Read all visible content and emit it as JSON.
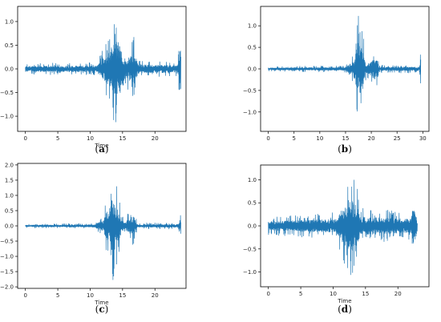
{
  "chart_data": [
    {
      "type": "line",
      "caption_letter": "a",
      "xlabel": "Time",
      "ylabel": "",
      "xlim": [
        -1.2,
        24.8
      ],
      "ylim": [
        -1.32,
        1.32
      ],
      "xticks": [
        0,
        5,
        10,
        15,
        20
      ],
      "yticks": [
        -1.0,
        -0.5,
        0.0,
        0.5,
        1.0
      ],
      "ytick_labels": [
        "−1.0",
        "−0.5",
        "0.0",
        "0.5",
        "1.0"
      ],
      "color": "#1f77b4",
      "duration": 24,
      "envelope": [
        {
          "x": 0,
          "a": 0.12
        },
        {
          "x": 11,
          "a": 0.14
        },
        {
          "x": 12,
          "a": 0.45
        },
        {
          "x": 13,
          "a": 0.75
        },
        {
          "x": 13.6,
          "a": 1.15
        },
        {
          "x": 14.6,
          "a": 1.18
        },
        {
          "x": 15.2,
          "a": 0.3
        },
        {
          "x": 16.8,
          "a": 0.7
        },
        {
          "x": 17.4,
          "a": 0.2
        },
        {
          "x": 23.5,
          "a": 0.15
        },
        {
          "x": 24,
          "a": 1.05
        }
      ]
    },
    {
      "type": "line",
      "caption_letter": "b",
      "xlabel": "",
      "ylabel": "",
      "xlim": [
        -1.5,
        31.2
      ],
      "ylim": [
        -1.45,
        1.45
      ],
      "xticks": [
        0,
        5,
        10,
        15,
        20,
        25,
        30
      ],
      "yticks": [
        -1.0,
        -0.5,
        0.0,
        0.5,
        1.0
      ],
      "ytick_labels": [
        "−1.0",
        "−0.5",
        "0.0",
        "0.5",
        "1.0"
      ],
      "color": "#1f77b4",
      "duration": 29.6,
      "envelope": [
        {
          "x": 0,
          "a": 0.06
        },
        {
          "x": 15,
          "a": 0.08
        },
        {
          "x": 16.5,
          "a": 0.35
        },
        {
          "x": 17.5,
          "a": 1.3
        },
        {
          "x": 18.3,
          "a": 0.95
        },
        {
          "x": 19,
          "a": 0.2
        },
        {
          "x": 21,
          "a": 0.55
        },
        {
          "x": 21.5,
          "a": 0.1
        },
        {
          "x": 29.3,
          "a": 0.1
        },
        {
          "x": 29.6,
          "a": 0.6
        }
      ]
    },
    {
      "type": "line",
      "caption_letter": "c",
      "xlabel": "Time",
      "ylabel": "",
      "xlim": [
        -1.2,
        24.8
      ],
      "ylim": [
        -2.05,
        2.05
      ],
      "xticks": [
        0,
        5,
        10,
        15,
        20
      ],
      "yticks": [
        -2.0,
        -1.5,
        -1.0,
        -0.5,
        0.0,
        0.5,
        1.0,
        1.5,
        2.0
      ],
      "ytick_labels": [
        "−2.0",
        "−1.5",
        "−1.0",
        "−0.5",
        "0.0",
        "0.5",
        "1.0",
        "1.5",
        "2.0"
      ],
      "color": "#1f77b4",
      "duration": 24,
      "envelope": [
        {
          "x": 0,
          "a": 0.07
        },
        {
          "x": 10.5,
          "a": 0.09
        },
        {
          "x": 12,
          "a": 0.35
        },
        {
          "x": 13.5,
          "a": 1.85
        },
        {
          "x": 14.3,
          "a": 1.1
        },
        {
          "x": 15.2,
          "a": 0.2
        },
        {
          "x": 16.6,
          "a": 0.7
        },
        {
          "x": 17.3,
          "a": 0.1
        },
        {
          "x": 23.6,
          "a": 0.12
        },
        {
          "x": 24,
          "a": 0.4
        }
      ]
    },
    {
      "type": "line",
      "caption_letter": "d",
      "xlabel": "Time",
      "ylabel": "",
      "xlim": [
        -1.2,
        24.8
      ],
      "ylim": [
        -1.32,
        1.32
      ],
      "xticks": [
        0,
        5,
        10,
        15,
        20
      ],
      "yticks": [
        -1.0,
        -0.5,
        0.0,
        0.5,
        1.0
      ],
      "ytick_labels": [
        "−1.0",
        "−0.5",
        "0.0",
        "0.5",
        "1.0"
      ],
      "color": "#1f77b4",
      "duration": 23,
      "envelope": [
        {
          "x": 0,
          "a": 0.2
        },
        {
          "x": 10.5,
          "a": 0.3
        },
        {
          "x": 11.5,
          "a": 0.8
        },
        {
          "x": 12.5,
          "a": 1.2
        },
        {
          "x": 13.5,
          "a": 1.12
        },
        {
          "x": 14.2,
          "a": 0.4
        },
        {
          "x": 22,
          "a": 0.3
        },
        {
          "x": 22.4,
          "a": 0.95
        },
        {
          "x": 23,
          "a": 0.25
        }
      ]
    }
  ]
}
